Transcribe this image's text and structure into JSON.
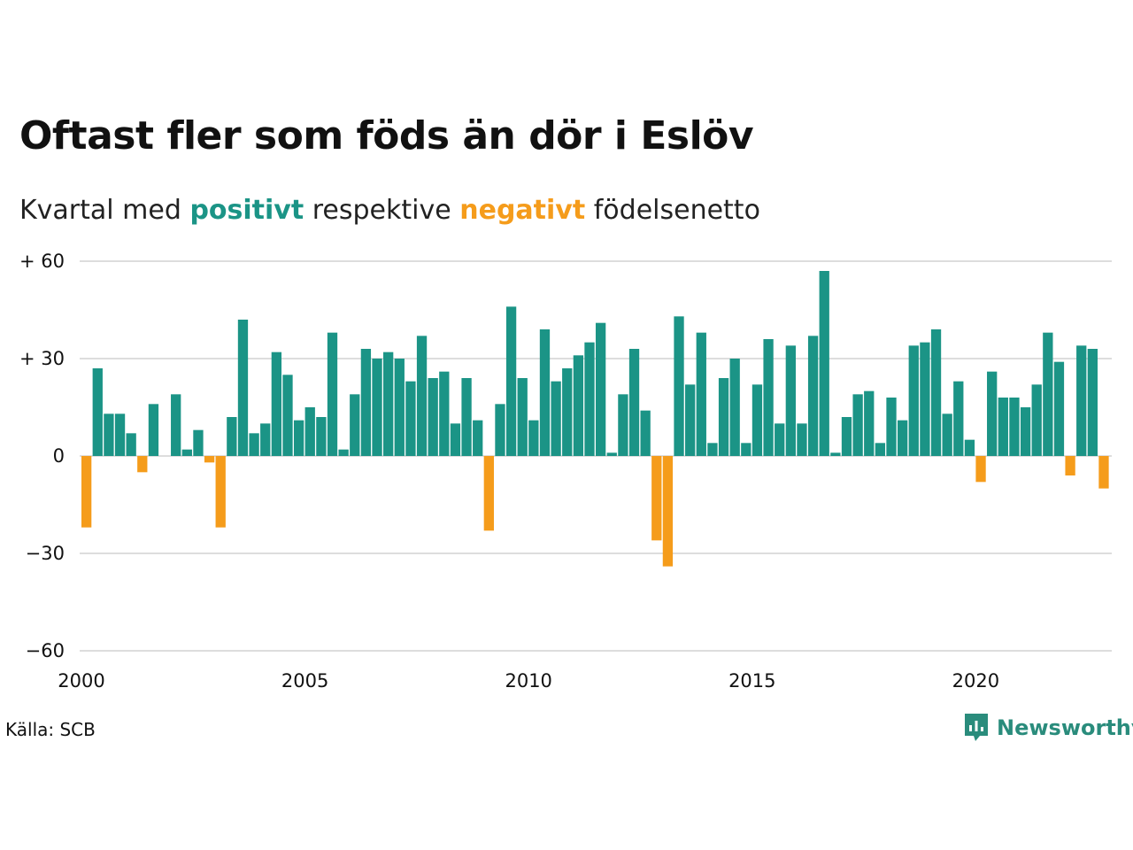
{
  "title": "Oftast fler som föds än dör i Eslöv",
  "subtitle": {
    "prefix": "Kvartal med",
    "positive_word": "positivt",
    "middle": "respektive",
    "negative_word": "negativt",
    "suffix": "födelsenetto"
  },
  "colors": {
    "positive": "#1b9486",
    "negative": "#f59c1b",
    "grid": "#dddddd",
    "brand": "#2a8c7c"
  },
  "source": "Källa: SCB",
  "brand": {
    "name": "Newsworthy",
    "icon": "newsworthy-logo-icon"
  },
  "chart_data": {
    "type": "bar",
    "x_start": "2000 Q1",
    "x_tick_labels": [
      "2000",
      "2005",
      "2010",
      "2015",
      "2020"
    ],
    "y_tick_labels": [
      "+ 60",
      "+ 30",
      "0",
      "−30",
      "−60"
    ],
    "y_ticks": [
      60,
      30,
      0,
      -30,
      -60
    ],
    "ylim": [
      -60,
      60
    ],
    "grid": true,
    "values": [
      -22,
      27,
      13,
      13,
      7,
      -5,
      16,
      0,
      19,
      2,
      8,
      -2,
      -22,
      12,
      42,
      7,
      10,
      32,
      25,
      11,
      15,
      12,
      38,
      2,
      19,
      33,
      30,
      32,
      30,
      23,
      37,
      24,
      26,
      10,
      24,
      11,
      -23,
      16,
      46,
      24,
      11,
      39,
      23,
      27,
      31,
      35,
      41,
      1,
      19,
      33,
      14,
      -26,
      -34,
      43,
      22,
      38,
      4,
      24,
      30,
      4,
      22,
      36,
      10,
      34,
      10,
      37,
      57,
      1,
      12,
      19,
      20,
      4,
      18,
      11,
      34,
      35,
      39,
      13,
      23,
      5,
      -8,
      26,
      18,
      18,
      15,
      22,
      38,
      29,
      -6,
      34,
      33,
      -10
    ]
  }
}
